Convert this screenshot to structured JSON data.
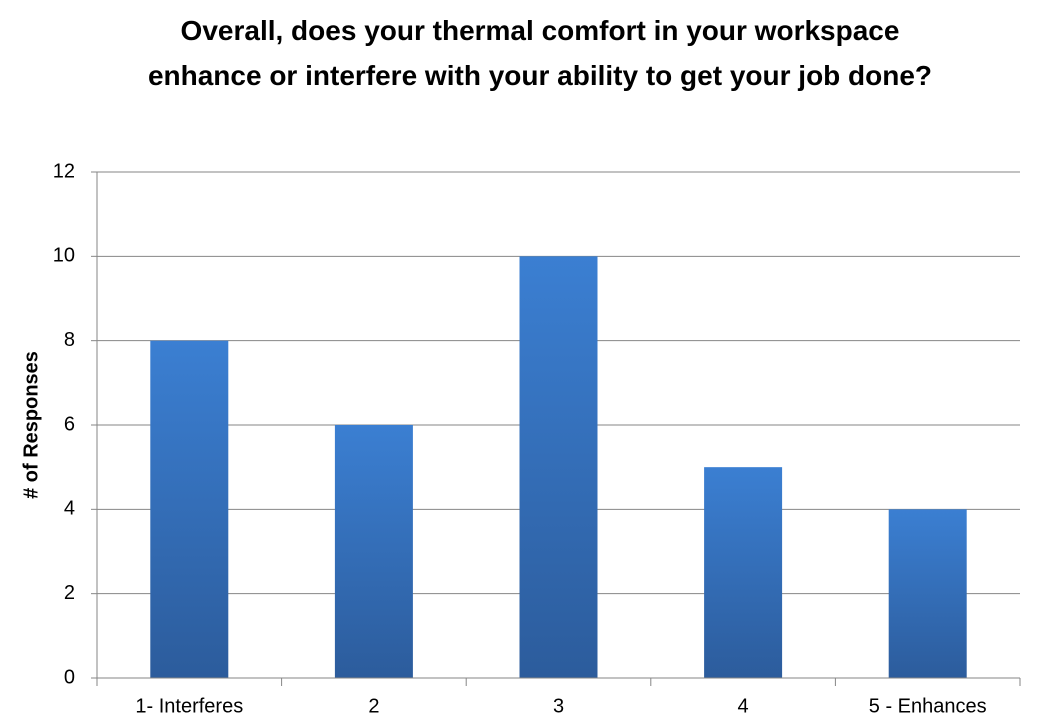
{
  "chart_data": {
    "type": "bar",
    "title": "Overall, does your thermal comfort in your workspace enhance or interfere with your ability to get your job done?",
    "y_label": "# of Responses",
    "categories": [
      "1- Interferes",
      "2",
      "3",
      "4",
      "5 - Enhances"
    ],
    "values": [
      8,
      6,
      10,
      5,
      4
    ],
    "color": "#3b7fd2",
    "ylim": [
      0,
      12
    ],
    "yticks": [
      0,
      2,
      4,
      6,
      8,
      10,
      12
    ],
    "grid": true
  }
}
